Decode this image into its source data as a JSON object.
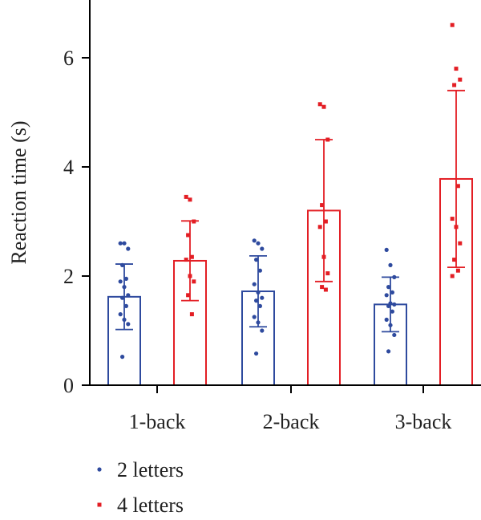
{
  "chart_data": {
    "type": "bar",
    "title": "",
    "xlabel": "",
    "ylabel": "Reaction time (s)",
    "categories": [
      "1-back",
      "2-back",
      "3-back"
    ],
    "ylim": [
      0,
      7
    ],
    "yticks": [
      0,
      2,
      4,
      6
    ],
    "grid": false,
    "legend_position": "bottom-left",
    "series": [
      {
        "name": "2 letters",
        "color": "#2e4a9e",
        "values": [
          1.62,
          1.72,
          1.48
        ],
        "error": [
          0.6,
          0.65,
          0.5
        ],
        "points": [
          [
            2.6,
            2.6,
            2.5,
            2.2,
            1.95,
            1.9,
            1.8,
            1.65,
            1.6,
            1.45,
            1.3,
            1.2,
            1.12,
            0.52
          ],
          [
            2.65,
            2.6,
            2.5,
            2.3,
            2.1,
            1.85,
            1.7,
            1.6,
            1.55,
            1.45,
            1.25,
            1.15,
            1.0,
            0.58
          ],
          [
            2.48,
            2.2,
            1.98,
            1.8,
            1.7,
            1.65,
            1.5,
            1.48,
            1.45,
            1.35,
            1.2,
            1.1,
            0.92,
            0.62
          ]
        ]
      },
      {
        "name": "4 letters",
        "color": "#e31e24",
        "values": [
          2.28,
          3.2,
          3.78
        ],
        "error": [
          0.73,
          1.3,
          1.62
        ],
        "points": [
          [
            3.45,
            3.4,
            3.0,
            2.75,
            2.35,
            2.3,
            2.0,
            1.9,
            1.65,
            1.3
          ],
          [
            5.15,
            5.1,
            4.5,
            3.3,
            3.0,
            2.9,
            2.35,
            2.05,
            1.8,
            1.75
          ],
          [
            6.6,
            5.8,
            5.6,
            5.5,
            3.65,
            3.05,
            2.9,
            2.6,
            2.3,
            2.1,
            2.0
          ]
        ]
      }
    ]
  }
}
